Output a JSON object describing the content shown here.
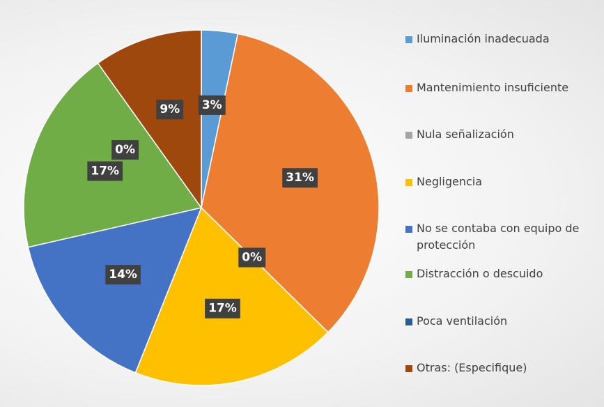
{
  "chart_data": {
    "type": "pie",
    "categories": [
      "Iluminación inadecuada",
      "Mantenimiento insuficiente",
      "Nula señalización",
      "Negligencia",
      "No se contaba con equipo de protección",
      "Distracción o descuido",
      "Poca ventilación",
      "Otras: (Especifique)"
    ],
    "values": [
      3,
      31,
      0,
      17,
      14,
      17,
      0,
      9
    ],
    "value_labels": [
      "3%",
      "31%",
      "0%",
      "17%",
      "14%",
      "17%",
      "0%",
      "9%"
    ],
    "colors": [
      "#5b9bd5",
      "#ed7d31",
      "#a5a5a5",
      "#ffc000",
      "#4472c4",
      "#70ad47",
      "#255e91",
      "#9e480e"
    ],
    "legend": "right"
  }
}
